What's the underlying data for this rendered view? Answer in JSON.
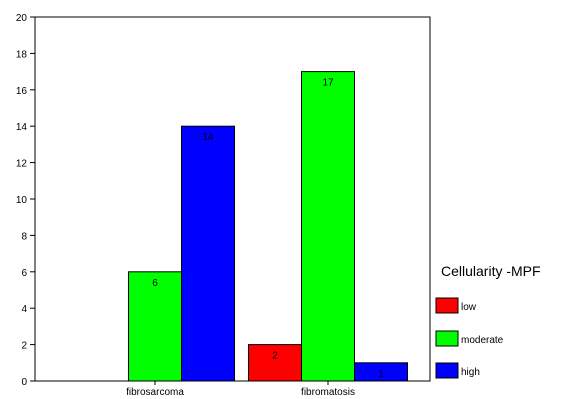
{
  "chart_data": {
    "type": "bar",
    "categories": [
      "fibrosarcoma",
      "fibromatosis"
    ],
    "series": [
      {
        "name": "low",
        "color": "#ff0000",
        "values": [
          0,
          2
        ]
      },
      {
        "name": "moderate",
        "color": "#00ff00",
        "values": [
          6,
          17
        ]
      },
      {
        "name": "high",
        "color": "#0000ff",
        "values": [
          14,
          1
        ]
      }
    ],
    "value_labels": [
      [
        "",
        "6",
        "14"
      ],
      [
        "2",
        "17",
        "1"
      ]
    ],
    "ylim": [
      0,
      20
    ],
    "yticks": [
      "0",
      "2",
      "4",
      "6",
      "8",
      "10",
      "12",
      "14",
      "16",
      "18",
      "20"
    ],
    "legend_title": "Cellularity -MPF",
    "legend_position": "right",
    "grid": false
  }
}
